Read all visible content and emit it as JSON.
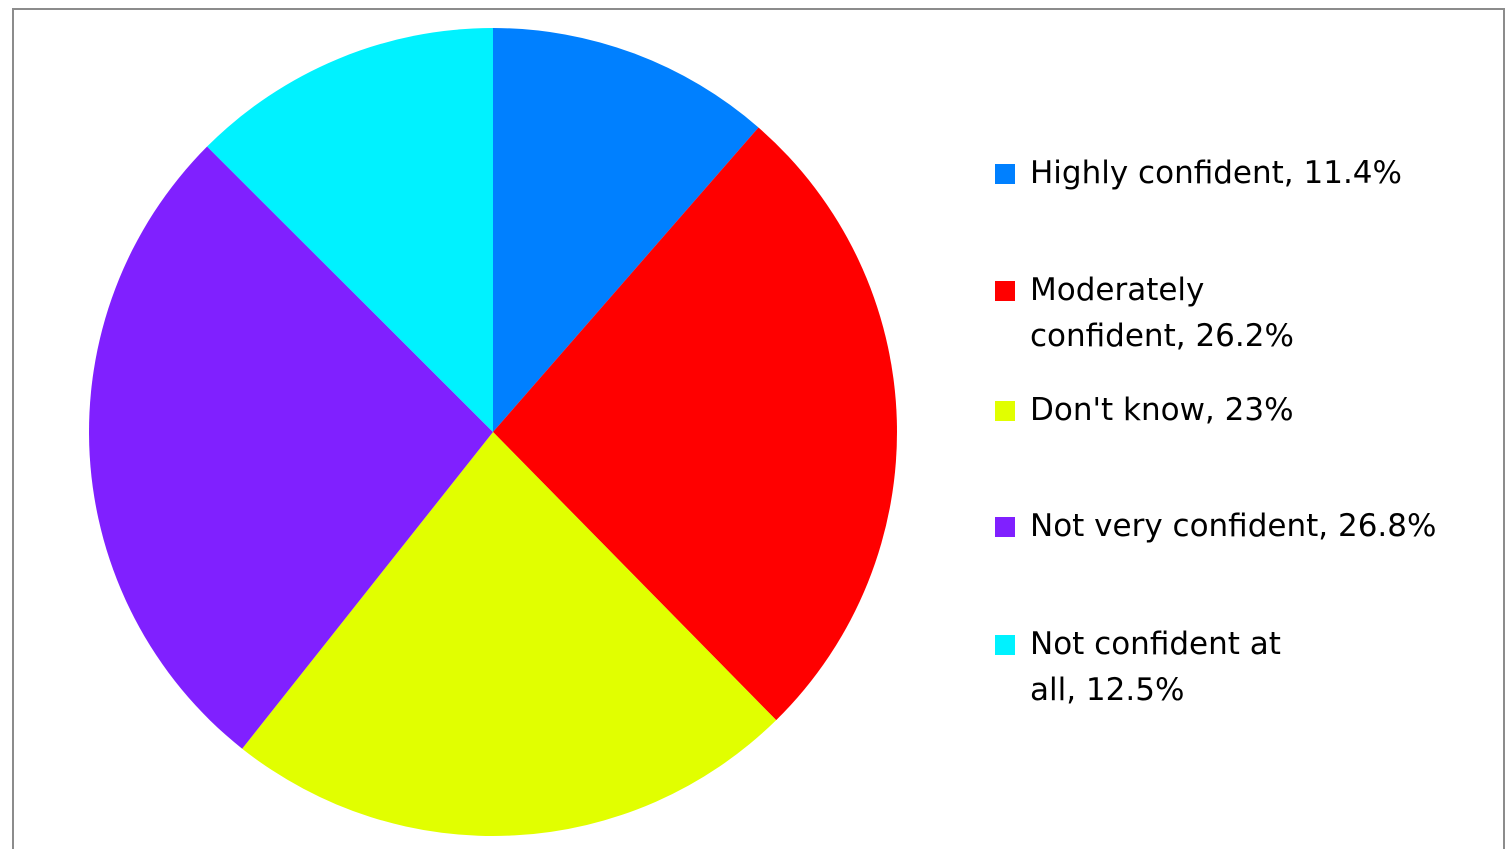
{
  "chart_data": {
    "type": "pie",
    "title": "",
    "slices": [
      {
        "label": "Highly confident, 11.4%",
        "value": 11.4,
        "color": "#0080FF"
      },
      {
        "label": "Moderately confident, 26.2%",
        "value": 26.2,
        "color": "#FF0000"
      },
      {
        "label": "Don't know, 23%",
        "value": 23,
        "color": "#E1FF00"
      },
      {
        "label": "Not very confident, 26.8%",
        "value": 26.8,
        "color": "#8020FF"
      },
      {
        "label": "Not confident at all, 12.5%",
        "value": 12.5,
        "color": "#00F2FF"
      }
    ],
    "start_angle": "12 o'clock",
    "direction": "clockwise",
    "legend_position": "right",
    "grid": false
  }
}
